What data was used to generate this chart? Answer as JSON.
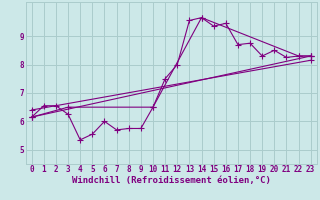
{
  "bg_color": "#cce8e8",
  "grid_color": "#aacccc",
  "line_color": "#800080",
  "xlabel": "Windchill (Refroidissement éolien,°C)",
  "xlim": [
    -0.5,
    23.5
  ],
  "ylim": [
    4.5,
    10.2
  ],
  "xticks": [
    0,
    1,
    2,
    3,
    4,
    5,
    6,
    7,
    8,
    9,
    10,
    11,
    12,
    13,
    14,
    15,
    16,
    17,
    18,
    19,
    20,
    21,
    22,
    23
  ],
  "yticks": [
    5,
    6,
    7,
    8,
    9
  ],
  "series1_x": [
    0,
    1,
    2,
    3,
    4,
    5,
    6,
    7,
    8,
    9,
    10,
    11,
    12,
    13,
    14,
    15,
    16,
    17,
    18,
    19,
    20,
    21,
    22,
    23
  ],
  "series1_y": [
    6.15,
    6.55,
    6.55,
    6.25,
    5.35,
    5.55,
    6.0,
    5.7,
    5.75,
    5.75,
    6.5,
    7.5,
    8.0,
    9.55,
    9.65,
    9.35,
    9.45,
    8.7,
    8.75,
    8.3,
    8.5,
    8.25,
    8.3,
    8.3
  ],
  "series2_x": [
    0,
    3,
    10,
    14,
    22,
    23
  ],
  "series2_y": [
    6.15,
    6.5,
    6.5,
    9.65,
    8.3,
    8.3
  ],
  "series3_x": [
    0,
    23
  ],
  "series3_y": [
    6.15,
    8.3
  ],
  "series4_x": [
    0,
    23
  ],
  "series4_y": [
    6.4,
    8.15
  ],
  "tick_fontsize": 5.5,
  "xlabel_fontsize": 6.5,
  "lw": 0.8,
  "ms": 2.8
}
